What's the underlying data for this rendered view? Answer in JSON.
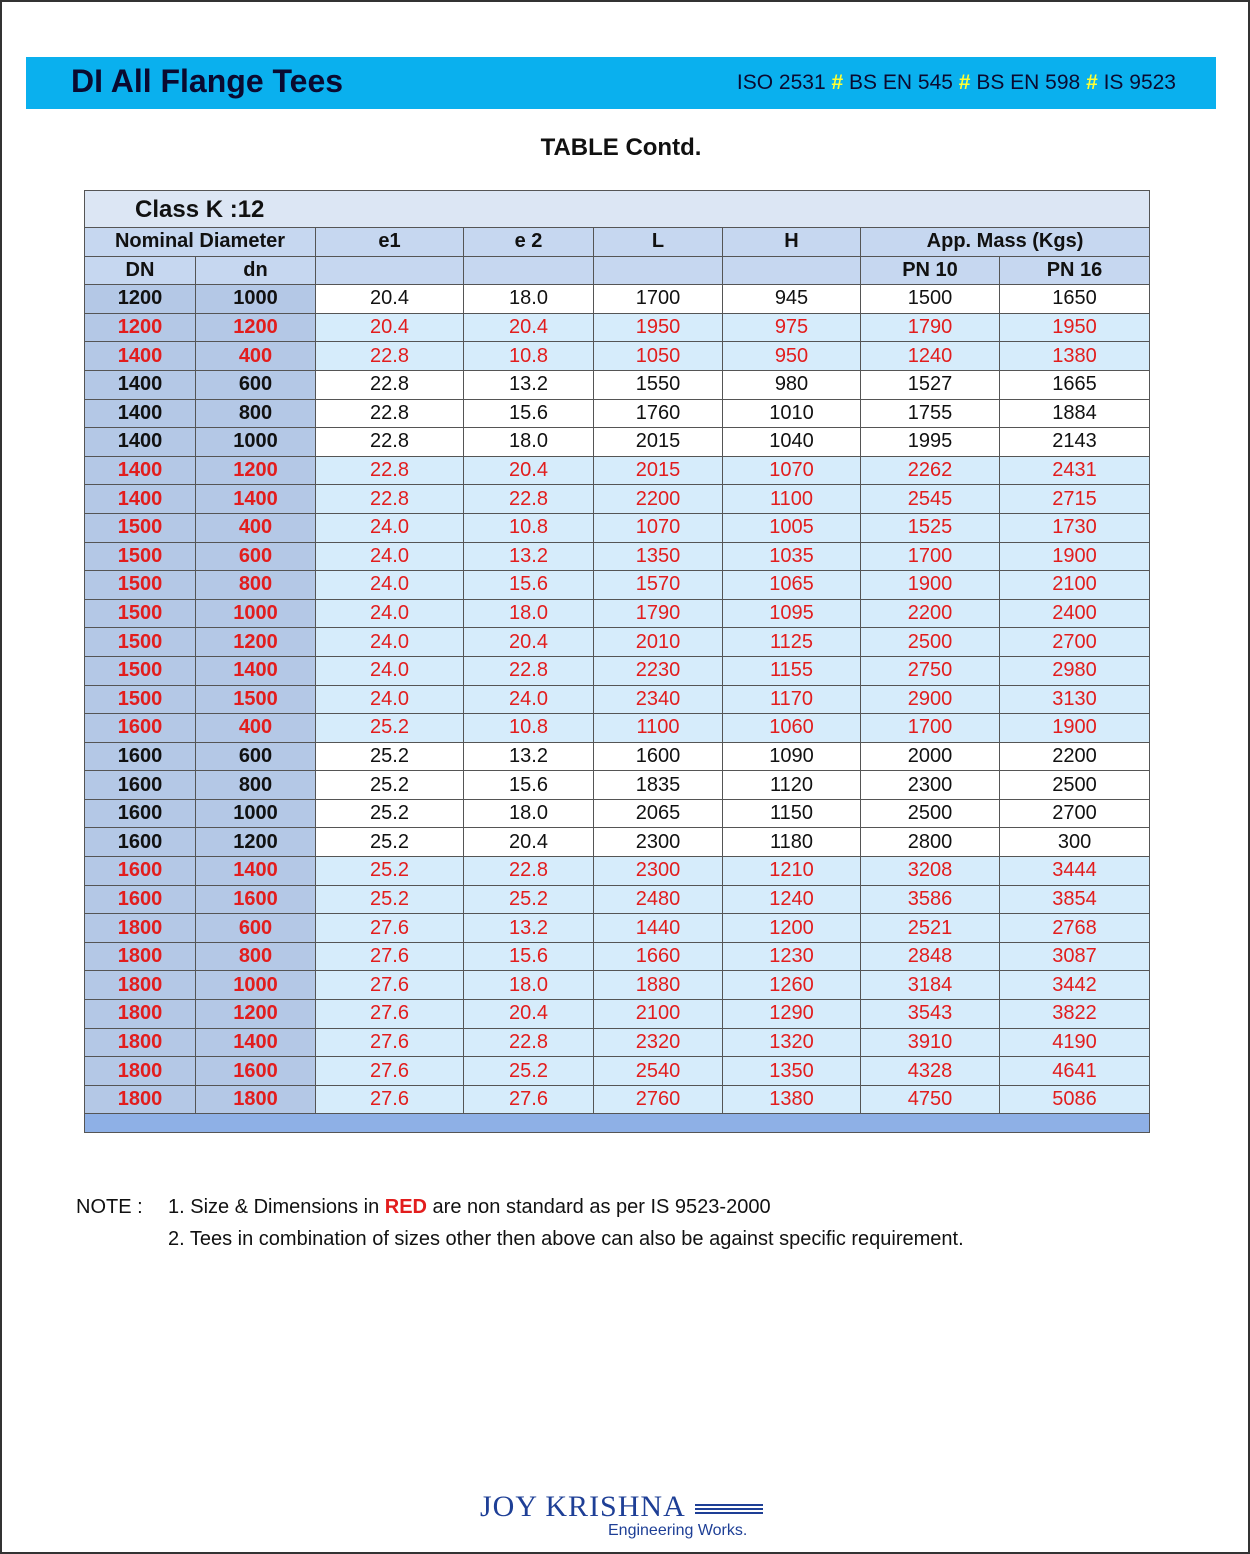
{
  "header": {
    "title": "DI All Flange Tees",
    "standards": [
      "ISO 2531",
      "BS EN 545",
      "BS EN 598",
      "IS 9523"
    ],
    "separator": "#"
  },
  "subtitle": "TABLE Contd.",
  "table": {
    "class_label": "Class K :12",
    "headers": {
      "nominal_diameter": "Nominal Diameter",
      "e1": "e1",
      "e2": "e 2",
      "L": "L",
      "H": "H",
      "mass": "App. Mass (Kgs)",
      "DN": "DN",
      "dn": "dn",
      "pn10": "PN 10",
      "pn16": "PN 16"
    },
    "rows": [
      {
        "DN": "1200",
        "dn": "1000",
        "e1": "20.4",
        "e2": "18.0",
        "L": "1700",
        "H": "945",
        "pn10": "1500",
        "pn16": "1650",
        "red": false
      },
      {
        "DN": "1200",
        "dn": "1200",
        "e1": "20.4",
        "e2": "20.4",
        "L": "1950",
        "H": "975",
        "pn10": "1790",
        "pn16": "1950",
        "red": true
      },
      {
        "DN": "1400",
        "dn": "400",
        "e1": "22.8",
        "e2": "10.8",
        "L": "1050",
        "H": "950",
        "pn10": "1240",
        "pn16": "1380",
        "red": true
      },
      {
        "DN": "1400",
        "dn": "600",
        "e1": "22.8",
        "e2": "13.2",
        "L": "1550",
        "H": "980",
        "pn10": "1527",
        "pn16": "1665",
        "red": false
      },
      {
        "DN": "1400",
        "dn": "800",
        "e1": "22.8",
        "e2": "15.6",
        "L": "1760",
        "H": "1010",
        "pn10": "1755",
        "pn16": "1884",
        "red": false
      },
      {
        "DN": "1400",
        "dn": "1000",
        "e1": "22.8",
        "e2": "18.0",
        "L": "2015",
        "H": "1040",
        "pn10": "1995",
        "pn16": "2143",
        "red": false
      },
      {
        "DN": "1400",
        "dn": "1200",
        "e1": "22.8",
        "e2": "20.4",
        "L": "2015",
        "H": "1070",
        "pn10": "2262",
        "pn16": "2431",
        "red": true
      },
      {
        "DN": "1400",
        "dn": "1400",
        "e1": "22.8",
        "e2": "22.8",
        "L": "2200",
        "H": "1100",
        "pn10": "2545",
        "pn16": "2715",
        "red": true
      },
      {
        "DN": "1500",
        "dn": "400",
        "e1": "24.0",
        "e2": "10.8",
        "L": "1070",
        "H": "1005",
        "pn10": "1525",
        "pn16": "1730",
        "red": true
      },
      {
        "DN": "1500",
        "dn": "600",
        "e1": "24.0",
        "e2": "13.2",
        "L": "1350",
        "H": "1035",
        "pn10": "1700",
        "pn16": "1900",
        "red": true
      },
      {
        "DN": "1500",
        "dn": "800",
        "e1": "24.0",
        "e2": "15.6",
        "L": "1570",
        "H": "1065",
        "pn10": "1900",
        "pn16": "2100",
        "red": true
      },
      {
        "DN": "1500",
        "dn": "1000",
        "e1": "24.0",
        "e2": "18.0",
        "L": "1790",
        "H": "1095",
        "pn10": "2200",
        "pn16": "2400",
        "red": true
      },
      {
        "DN": "1500",
        "dn": "1200",
        "e1": "24.0",
        "e2": "20.4",
        "L": "2010",
        "H": "1125",
        "pn10": "2500",
        "pn16": "2700",
        "red": true
      },
      {
        "DN": "1500",
        "dn": "1400",
        "e1": "24.0",
        "e2": "22.8",
        "L": "2230",
        "H": "1155",
        "pn10": "2750",
        "pn16": "2980",
        "red": true
      },
      {
        "DN": "1500",
        "dn": "1500",
        "e1": "24.0",
        "e2": "24.0",
        "L": "2340",
        "H": "1170",
        "pn10": "2900",
        "pn16": "3130",
        "red": true
      },
      {
        "DN": "1600",
        "dn": "400",
        "e1": "25.2",
        "e2": "10.8",
        "L": "1100",
        "H": "1060",
        "pn10": "1700",
        "pn16": "1900",
        "red": true
      },
      {
        "DN": "1600",
        "dn": "600",
        "e1": "25.2",
        "e2": "13.2",
        "L": "1600",
        "H": "1090",
        "pn10": "2000",
        "pn16": "2200",
        "red": false
      },
      {
        "DN": "1600",
        "dn": "800",
        "e1": "25.2",
        "e2": "15.6",
        "L": "1835",
        "H": "1120",
        "pn10": "2300",
        "pn16": "2500",
        "red": false
      },
      {
        "DN": "1600",
        "dn": "1000",
        "e1": "25.2",
        "e2": "18.0",
        "L": "2065",
        "H": "1150",
        "pn10": "2500",
        "pn16": "2700",
        "red": false
      },
      {
        "DN": "1600",
        "dn": "1200",
        "e1": "25.2",
        "e2": "20.4",
        "L": "2300",
        "H": "1180",
        "pn10": "2800",
        "pn16": "300",
        "red": false
      },
      {
        "DN": "1600",
        "dn": "1400",
        "e1": "25.2",
        "e2": "22.8",
        "L": "2300",
        "H": "1210",
        "pn10": "3208",
        "pn16": "3444",
        "red": true
      },
      {
        "DN": "1600",
        "dn": "1600",
        "e1": "25.2",
        "e2": "25.2",
        "L": "2480",
        "H": "1240",
        "pn10": "3586",
        "pn16": "3854",
        "red": true
      },
      {
        "DN": "1800",
        "dn": "600",
        "e1": "27.6",
        "e2": "13.2",
        "L": "1440",
        "H": "1200",
        "pn10": "2521",
        "pn16": "2768",
        "red": true
      },
      {
        "DN": "1800",
        "dn": "800",
        "e1": "27.6",
        "e2": "15.6",
        "L": "1660",
        "H": "1230",
        "pn10": "2848",
        "pn16": "3087",
        "red": true
      },
      {
        "DN": "1800",
        "dn": "1000",
        "e1": "27.6",
        "e2": "18.0",
        "L": "1880",
        "H": "1260",
        "pn10": "3184",
        "pn16": "3442",
        "red": true
      },
      {
        "DN": "1800",
        "dn": "1200",
        "e1": "27.6",
        "e2": "20.4",
        "L": "2100",
        "H": "1290",
        "pn10": "3543",
        "pn16": "3822",
        "red": true
      },
      {
        "DN": "1800",
        "dn": "1400",
        "e1": "27.6",
        "e2": "22.8",
        "L": "2320",
        "H": "1320",
        "pn10": "3910",
        "pn16": "4190",
        "red": true
      },
      {
        "DN": "1800",
        "dn": "1600",
        "e1": "27.6",
        "e2": "25.2",
        "L": "2540",
        "H": "1350",
        "pn10": "4328",
        "pn16": "4641",
        "red": true
      },
      {
        "DN": "1800",
        "dn": "1800",
        "e1": "27.6",
        "e2": "27.6",
        "L": "2760",
        "H": "1380",
        "pn10": "4750",
        "pn16": "5086",
        "red": true
      }
    ]
  },
  "notes": {
    "label": "NOTE :",
    "line1_prefix": "1. Size & Dimensions in ",
    "line1_red": "RED",
    "line1_suffix": " are non standard as per IS 9523-2000",
    "line2": "2. Tees in combination of sizes other then above can also be against specific requirement."
  },
  "logo": {
    "brand": "JOY KRISHNA",
    "tagline": "Engineering Works."
  },
  "colors": {
    "banner": "#0ab0ee",
    "red_text": "#e21d1d",
    "header_cell": "#c6d7f0",
    "dn_cell": "#b4c8e6",
    "red_row_fill": "#d6ecfb",
    "logo": "#1e3f96"
  }
}
